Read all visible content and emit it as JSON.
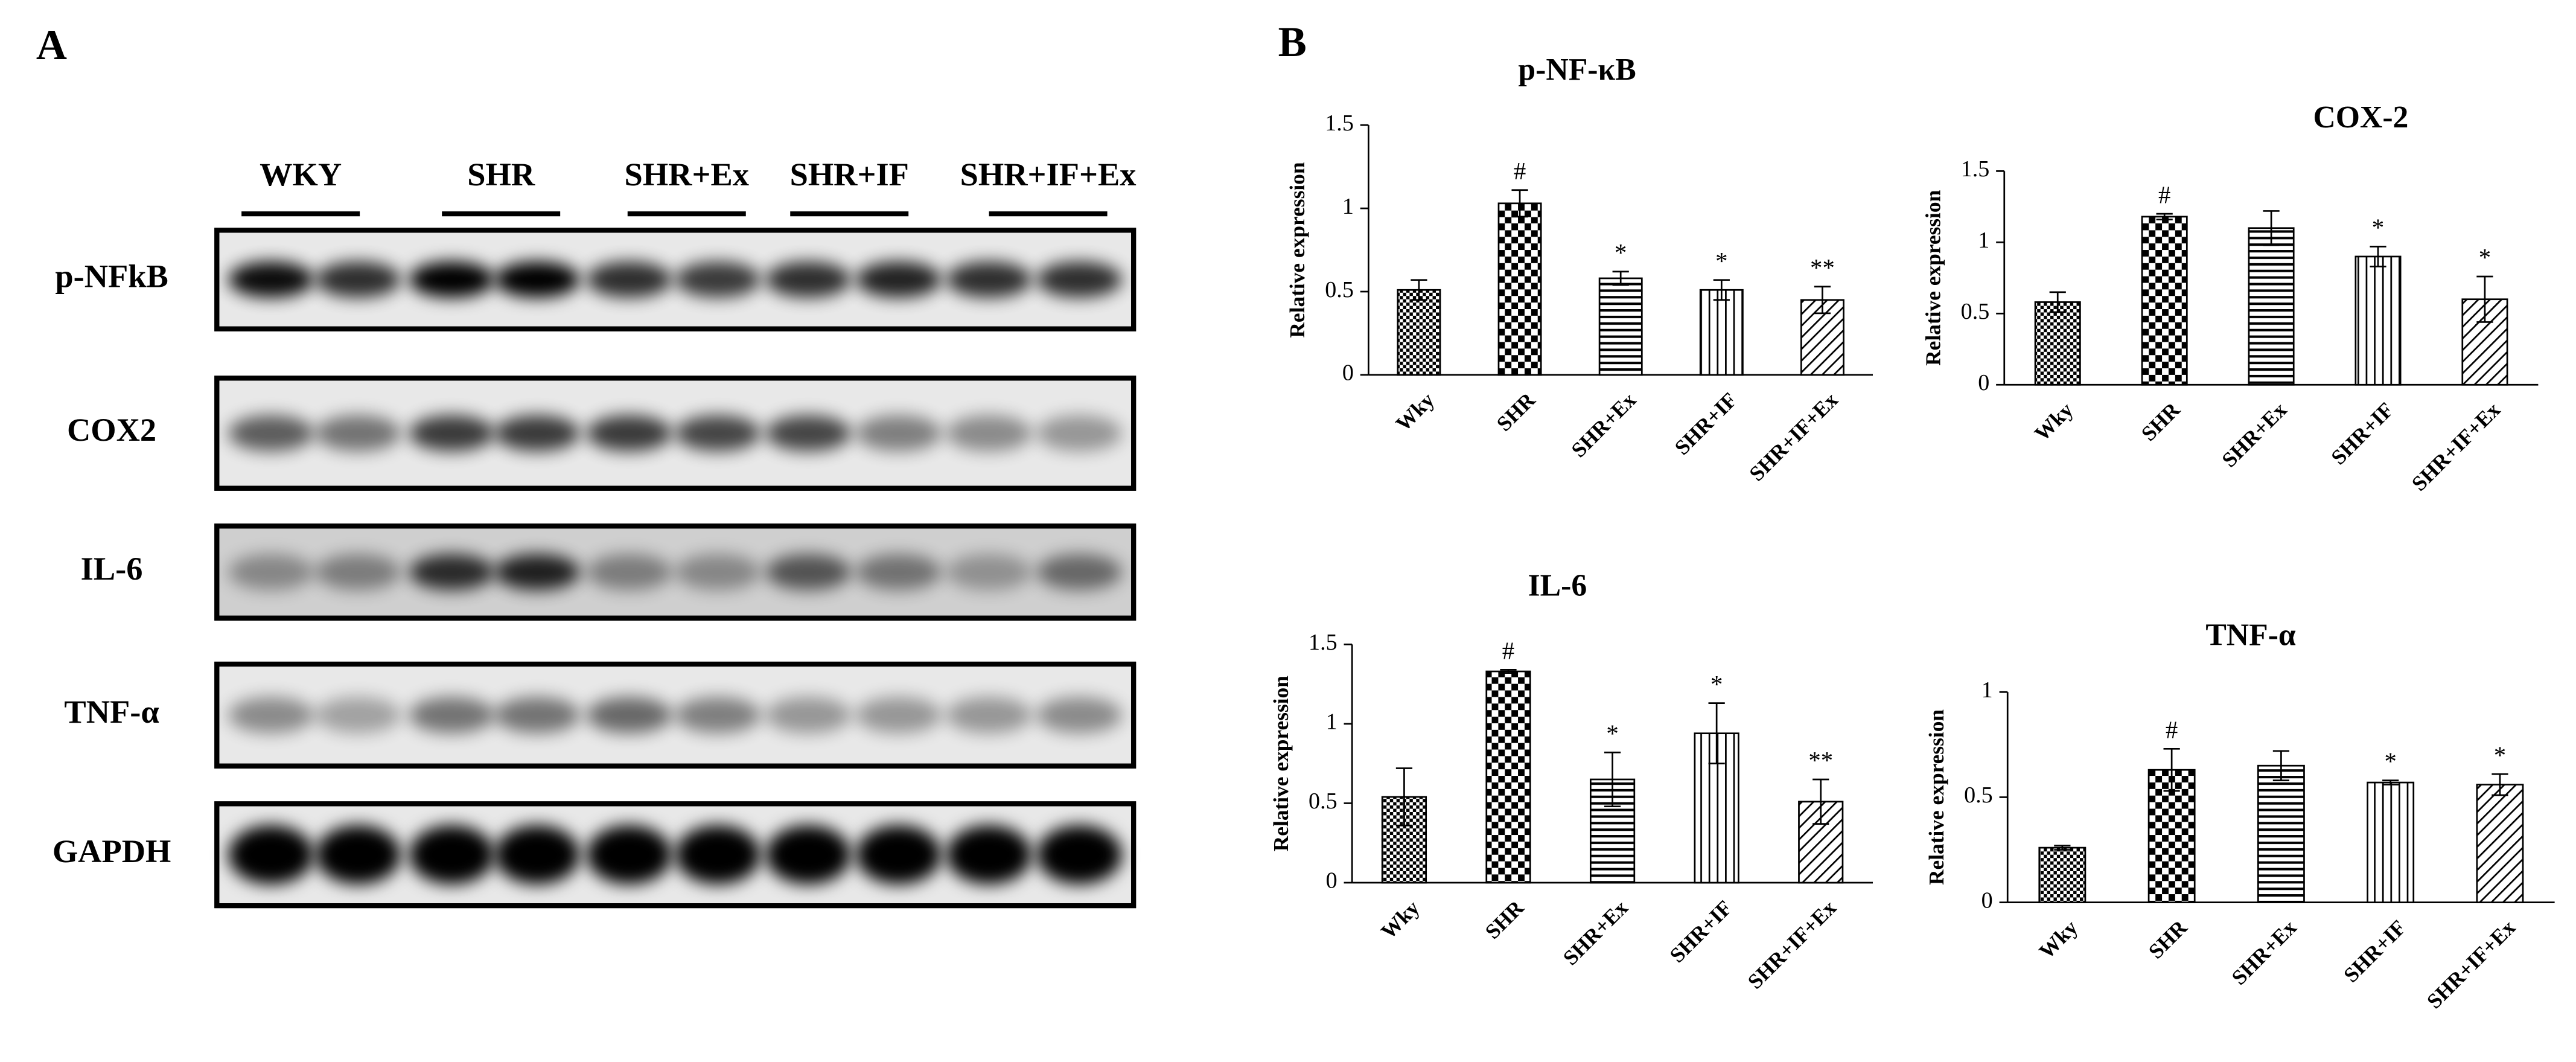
{
  "panel_a": {
    "label": "A",
    "groups": [
      "WKY",
      "SHR",
      "SHR+Ex",
      "SHR+IF",
      "SHR+IF+Ex"
    ],
    "rows": [
      "p-NFkB",
      "COX2",
      "IL-6",
      "TNF-α",
      "GAPDH"
    ]
  },
  "panel_b_label": "B",
  "chart_data": [
    {
      "type": "bar",
      "title": "p-NF-κB",
      "y_label": "Relative expression",
      "categories": [
        "Wky",
        "SHR",
        "SHR+Ex",
        "SHR+IF",
        "SHR+IF+Ex"
      ],
      "values": [
        0.51,
        1.03,
        0.58,
        0.51,
        0.45
      ],
      "errors": [
        0.06,
        0.08,
        0.04,
        0.06,
        0.08
      ],
      "annotations": [
        null,
        "#",
        "*",
        "*",
        "**"
      ],
      "ylim": [
        0,
        1.5
      ],
      "yticks": [
        0,
        0.5,
        1,
        1.5
      ],
      "color": "#000000"
    },
    {
      "type": "bar",
      "title": "COX-2",
      "y_label": "Relative expression",
      "categories": [
        "Wky",
        "SHR",
        "SHR+Ex",
        "SHR+IF",
        "SHR+IF+Ex"
      ],
      "values": [
        0.58,
        1.18,
        1.1,
        0.9,
        0.6
      ],
      "errors": [
        0.07,
        0.02,
        0.12,
        0.07,
        0.16
      ],
      "annotations": [
        null,
        "#",
        null,
        "*",
        "*"
      ],
      "ylim": [
        0,
        1.5
      ],
      "yticks": [
        0,
        0.5,
        1,
        1.5
      ],
      "color": "#000000"
    },
    {
      "type": "bar",
      "title": "IL-6",
      "y_label": "Relative expression",
      "categories": [
        "Wky",
        "SHR",
        "SHR+Ex",
        "SHR+IF",
        "SHR+IF+Ex"
      ],
      "values": [
        0.54,
        1.33,
        0.65,
        0.94,
        0.51
      ],
      "errors": [
        0.18,
        0.01,
        0.17,
        0.19,
        0.14
      ],
      "annotations": [
        null,
        "#",
        "*",
        "*",
        "**"
      ],
      "ylim": [
        0,
        1.5
      ],
      "yticks": [
        0,
        0.5,
        1,
        1.5
      ],
      "color": "#000000"
    },
    {
      "type": "bar",
      "title": "TNF-α",
      "y_label": "Relative expression",
      "categories": [
        "Wky",
        "SHR",
        "SHR+Ex",
        "SHR+IF",
        "SHR+IF+Ex"
      ],
      "values": [
        0.26,
        0.63,
        0.65,
        0.57,
        0.56
      ],
      "errors": [
        0.01,
        0.1,
        0.07,
        0.01,
        0.05
      ],
      "annotations": [
        null,
        "#",
        null,
        "*",
        "*"
      ],
      "ylim": [
        0,
        1
      ],
      "yticks": [
        0,
        0.5,
        1
      ],
      "color": "#000000"
    }
  ]
}
